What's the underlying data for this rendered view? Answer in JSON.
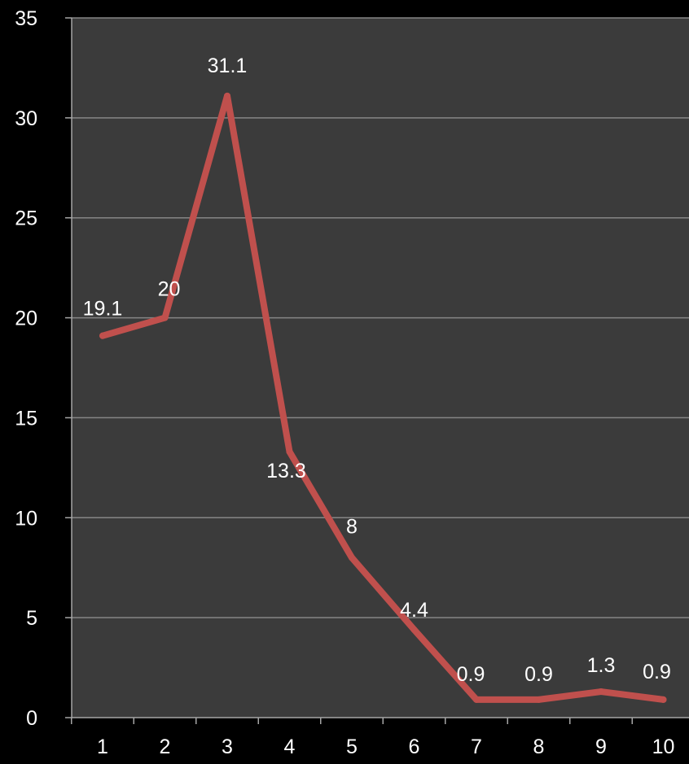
{
  "chart_data": {
    "type": "line",
    "title": "",
    "xlabel": "",
    "ylabel": "",
    "categories": [
      "1",
      "2",
      "3",
      "4",
      "5",
      "6",
      "7",
      "8",
      "9",
      "10"
    ],
    "series": [
      {
        "values": [
          19.1,
          20,
          31.1,
          13.3,
          8,
          4.4,
          0.9,
          0.9,
          1.3,
          0.9
        ],
        "labels": [
          "19.1",
          "20",
          "31.1",
          "13.3",
          "8",
          "4.4",
          "0.9",
          "0.9",
          "1.3",
          "0.9"
        ],
        "color": "#c0504d"
      }
    ],
    "ylim": [
      0,
      35
    ],
    "y_ticks": [
      "0",
      "5",
      "10",
      "15",
      "20",
      "25",
      "30",
      "35"
    ],
    "grid": true,
    "legend": "none",
    "colors": {
      "background": "#000000",
      "plot_area": "#3b3b3b",
      "gridline": "#868686",
      "axis": "#a6a6a6",
      "text": "#ffffff"
    }
  }
}
